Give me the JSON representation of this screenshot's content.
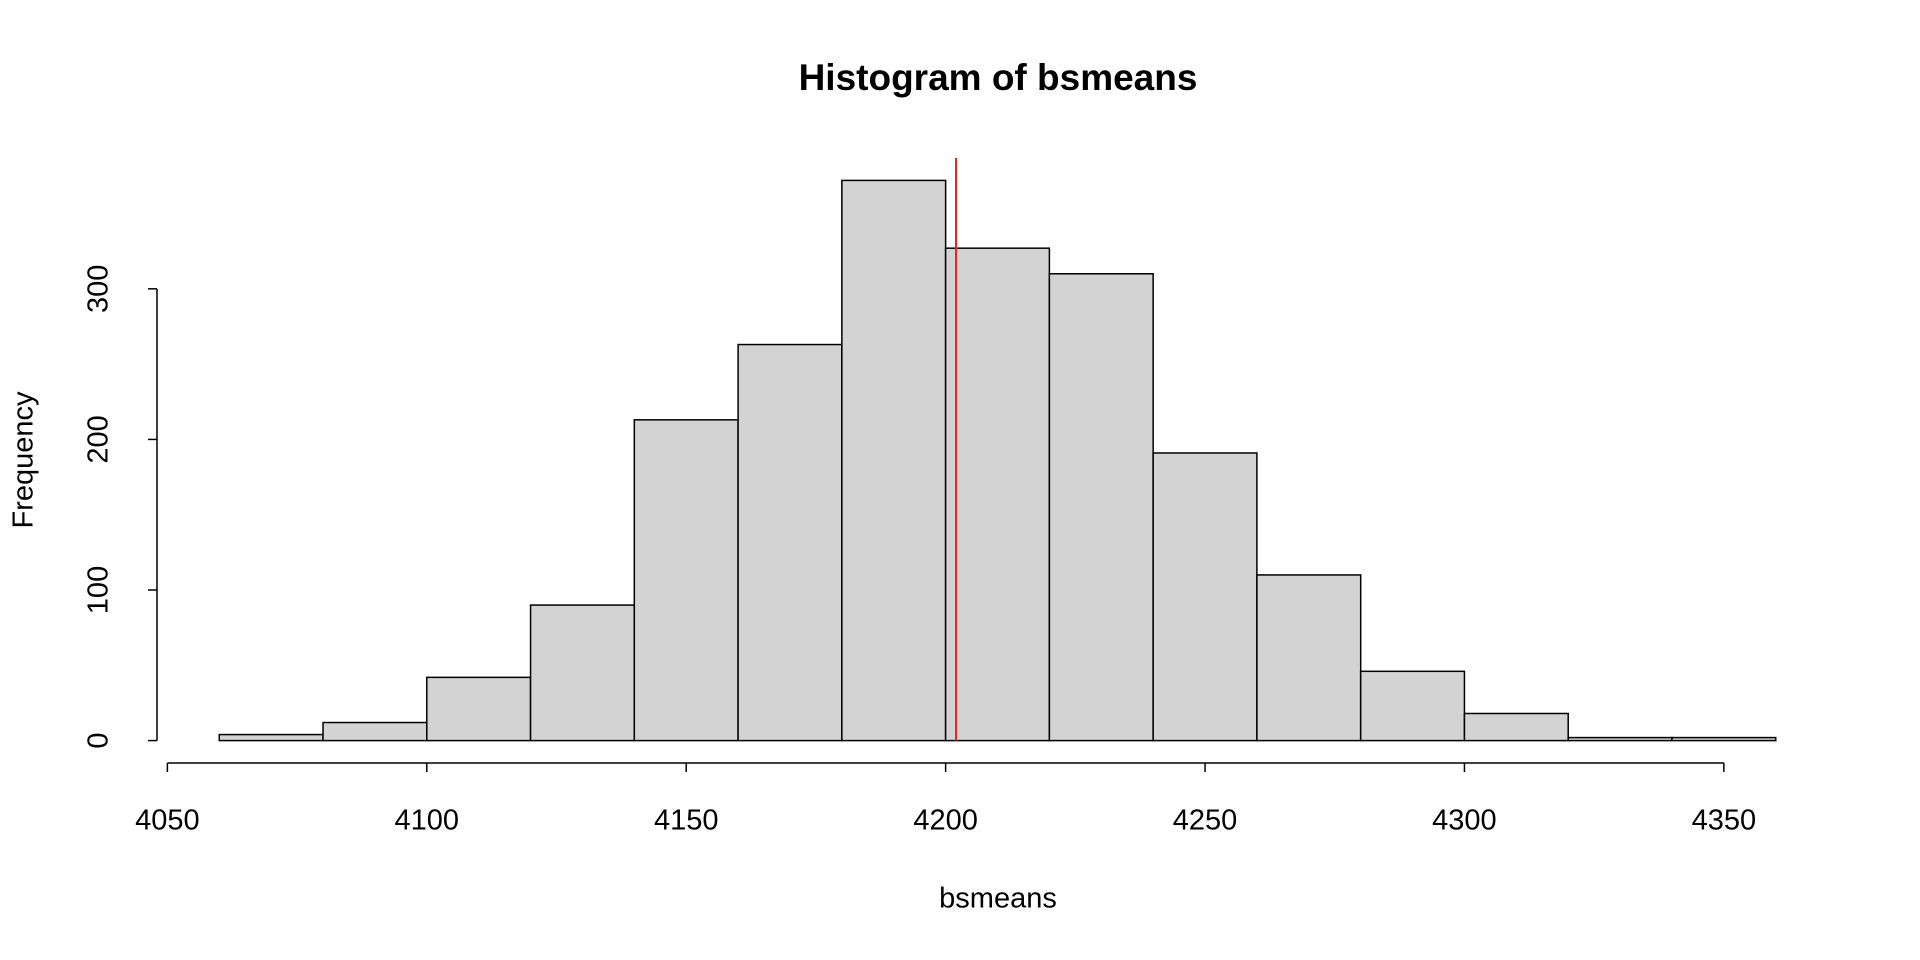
{
  "chart_data": {
    "type": "histogram",
    "title": "Histogram of bsmeans",
    "x_label": "bsmeans",
    "y_label": "Frequency",
    "bins": [
      4060,
      4080,
      4100,
      4120,
      4140,
      4160,
      4180,
      4200,
      4220,
      4240,
      4260,
      4280,
      4300,
      4320,
      4340,
      4360
    ],
    "counts": [
      4,
      12,
      42,
      90,
      213,
      263,
      372,
      327,
      310,
      191,
      110,
      46,
      18,
      2,
      2
    ],
    "color": "#d3d3d3",
    "vline": 4202,
    "vline_color": "#e8251f",
    "xlim": [
      4048,
      4372
    ],
    "xticks": [
      4050,
      4100,
      4150,
      4200,
      4250,
      4300,
      4350
    ],
    "ylim": [
      -14.88,
      386.88
    ],
    "yticks": [
      0,
      100,
      200,
      300
    ]
  }
}
